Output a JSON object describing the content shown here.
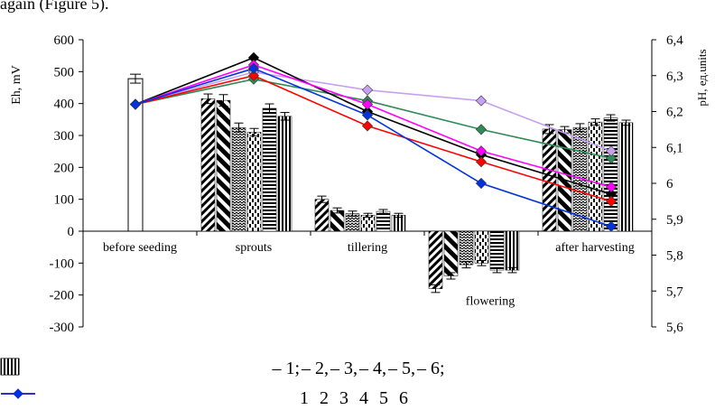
{
  "caption_fragment": "again (Figure 5).",
  "chart_data": {
    "type": "bar",
    "categories": [
      "before seeding",
      "sprouts",
      "tillering",
      "flowering",
      "after harvesting"
    ],
    "ylabel_left": "Eh, mV",
    "ylabel_right": "pH, ед.units",
    "yleft": {
      "min": -300,
      "max": 600,
      "ticks": [
        600,
        500,
        400,
        300,
        200,
        100,
        0,
        -100,
        -200,
        -300
      ]
    },
    "yright": {
      "min": 5.6,
      "max": 6.4,
      "ticks": [
        "6,4",
        "6,3",
        "6,2",
        "6,1",
        "6",
        "5,9",
        "5,8",
        "5,7",
        "5,6"
      ]
    },
    "before_seeding_bar": {
      "value": 478,
      "error": 14
    },
    "bar_series": [
      {
        "name": "1",
        "pattern": "diag-fine",
        "values": [
          415,
          100,
          -180,
          320
        ],
        "errors": [
          15,
          10,
          12,
          14
        ]
      },
      {
        "name": "2",
        "pattern": "diag-wide",
        "values": [
          410,
          65,
          -140,
          318
        ],
        "errors": [
          18,
          8,
          10,
          10
        ]
      },
      {
        "name": "3",
        "pattern": "wave",
        "values": [
          325,
          55,
          -105,
          325
        ],
        "errors": [
          14,
          8,
          10,
          12
        ]
      },
      {
        "name": "4",
        "pattern": "dashes",
        "values": [
          310,
          50,
          -100,
          342
        ],
        "errors": [
          12,
          6,
          8,
          10
        ]
      },
      {
        "name": "5",
        "pattern": "hlines",
        "values": [
          385,
          62,
          -122,
          355
        ],
        "errors": [
          14,
          6,
          8,
          10
        ]
      },
      {
        "name": "6",
        "pattern": "vlines",
        "values": [
          360,
          50,
          -122,
          340
        ],
        "errors": [
          12,
          6,
          8,
          8
        ]
      }
    ],
    "bar_legend_separators": [
      ";",
      ",",
      ",",
      ",",
      ",",
      ";"
    ],
    "line_series": [
      {
        "name": "1",
        "color": "#2e8b57",
        "values": [
          6.22,
          6.29,
          6.23,
          6.15,
          6.07
        ]
      },
      {
        "name": "2",
        "color": "#c8a0f0",
        "values": [
          6.22,
          6.31,
          6.26,
          6.23,
          6.09
        ]
      },
      {
        "name": "3",
        "color": "#000000",
        "values": [
          6.22,
          6.35,
          6.2,
          6.08,
          5.97
        ]
      },
      {
        "name": "4",
        "color": "#ff0000",
        "values": [
          6.22,
          6.3,
          6.16,
          6.06,
          5.95
        ]
      },
      {
        "name": "5",
        "color": "#ff00ff",
        "values": [
          6.22,
          6.33,
          6.22,
          6.09,
          5.99
        ]
      },
      {
        "name": "6",
        "color": "#0033dd",
        "values": [
          6.22,
          6.32,
          6.19,
          6.0,
          5.88
        ]
      }
    ],
    "grid": false
  }
}
